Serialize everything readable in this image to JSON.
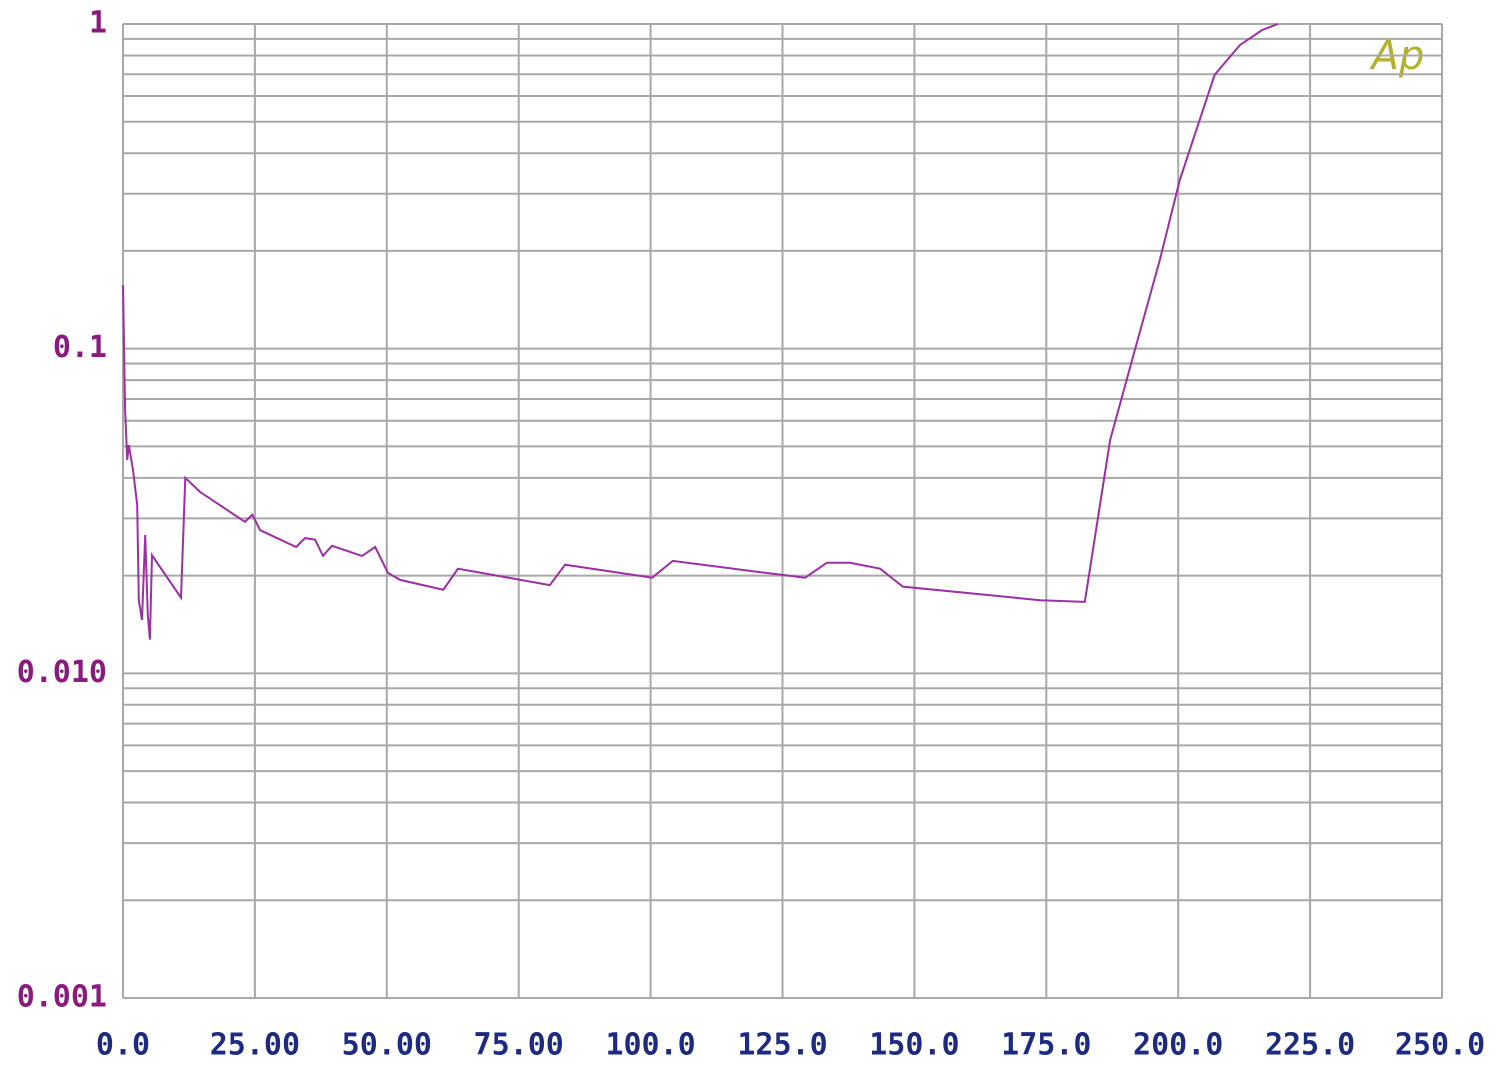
{
  "chart_data": {
    "type": "line",
    "annotation": "Ap",
    "x": [
      0,
      0.4,
      0.8,
      1.1,
      1.9,
      2.7,
      3.0,
      3.6,
      4.2,
      4.7,
      5.1,
      5.5,
      11.0,
      11.8,
      14.6,
      23.1,
      24.5,
      26.0,
      32.8,
      34.5,
      36.4,
      37.9,
      39.6,
      45.3,
      47.8,
      50.2,
      52.5,
      60.7,
      63.5,
      80.9,
      83.8,
      100.3,
      104.2,
      120.7,
      129.3,
      133.4,
      137.8,
      143.5,
      147.8,
      173.8,
      182.3,
      187.1,
      191.8,
      196.5,
      200.3,
      206.9,
      211.7,
      215.9,
      218.9
    ],
    "series": [
      {
        "color": "#9c2fa3",
        "values": [
          0.157,
          0.065,
          0.0454,
          0.0505,
          0.0423,
          0.033,
          0.0168,
          0.0146,
          0.0267,
          0.0151,
          0.0127,
          0.0231,
          0.0171,
          0.04,
          0.0362,
          0.0293,
          0.0308,
          0.0276,
          0.0245,
          0.0261,
          0.0258,
          0.023,
          0.0247,
          0.023,
          0.0245,
          0.0204,
          0.0194,
          0.0181,
          0.021,
          0.0187,
          0.0216,
          0.0197,
          0.0222,
          0.0205,
          0.0197,
          0.0219,
          0.0219,
          0.021,
          0.0185,
          0.0168,
          0.0166,
          0.0523,
          0.0991,
          0.187,
          0.331,
          0.697,
          0.861,
          0.958,
          1.0
        ]
      }
    ],
    "xlim": [
      0,
      250
    ],
    "xticks": [
      {
        "value": 0,
        "label": "0.0"
      },
      {
        "value": 25,
        "label": "25.00"
      },
      {
        "value": 50,
        "label": "50.00"
      },
      {
        "value": 75,
        "label": "75.00"
      },
      {
        "value": 100,
        "label": "100.0"
      },
      {
        "value": 125,
        "label": "125.0"
      },
      {
        "value": 150,
        "label": "150.0"
      },
      {
        "value": 175,
        "label": "175.0"
      },
      {
        "value": 200,
        "label": "200.0"
      },
      {
        "value": 225,
        "label": "225.0"
      },
      {
        "value": 250,
        "label": "250.0"
      }
    ],
    "ylim": [
      0.001,
      1
    ],
    "ylog": true,
    "yticks": [
      0.001,
      {
        "value": 0.01,
        "label": "0.010"
      },
      0.1,
      1
    ],
    "yminorticks": [
      0.002,
      0.003,
      0.004,
      0.005,
      0.006,
      0.007,
      0.008,
      0.009,
      0.02,
      0.03,
      0.04,
      0.05,
      0.06,
      0.07,
      0.08,
      0.09,
      0.2,
      0.3,
      0.4,
      0.5,
      0.6,
      0.7,
      0.8,
      0.9
    ],
    "grid": true
  }
}
